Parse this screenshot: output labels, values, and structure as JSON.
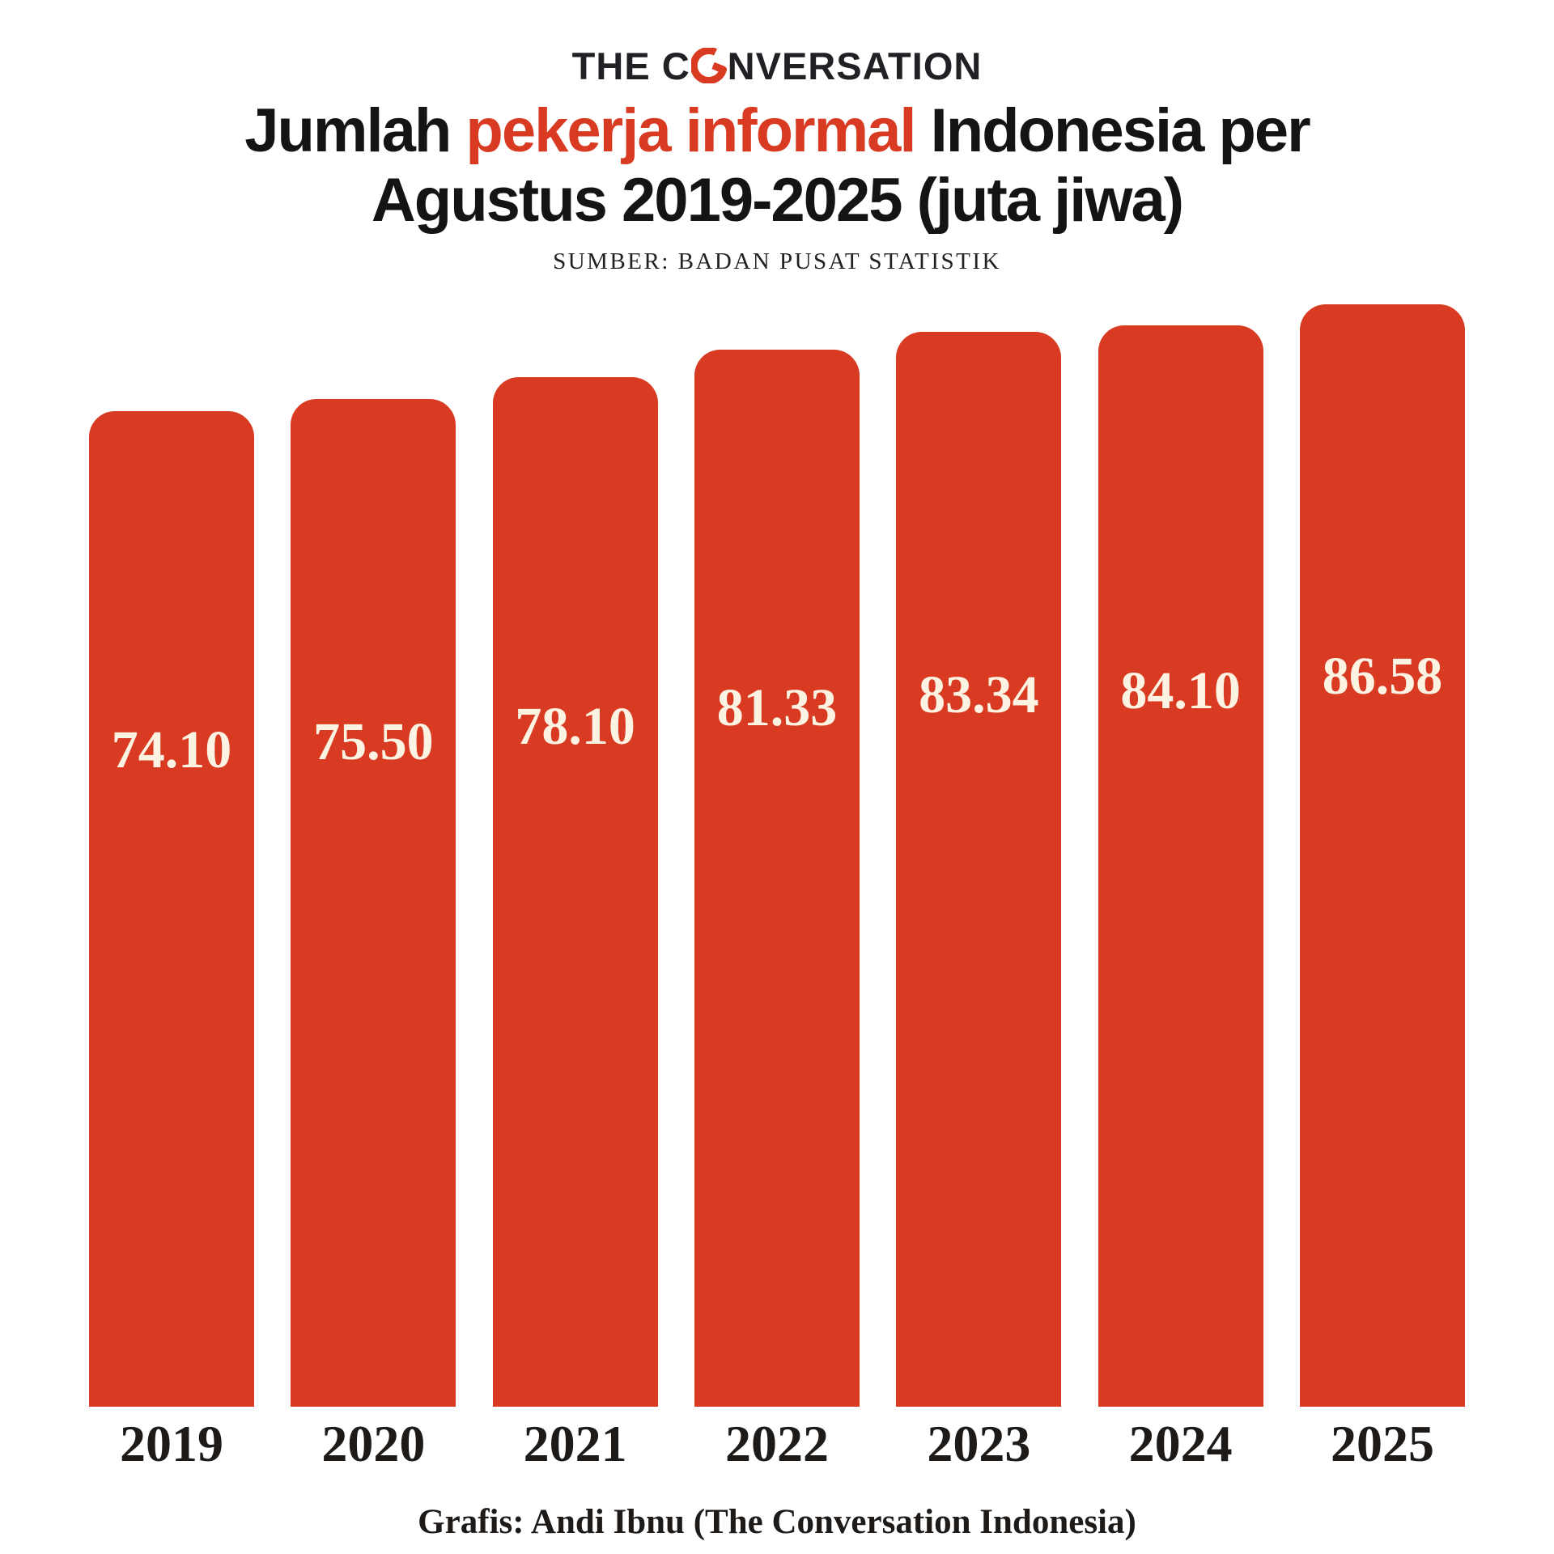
{
  "logo": {
    "pre": "THE C",
    "post": "NVERSATION"
  },
  "title": {
    "part1": "Jumlah ",
    "highlight": "pekerja informal",
    "part2": " Indonesia per",
    "line2": "Agustus 2019-2025 (juta jiwa)"
  },
  "source": "SUMBER: BADAN PUSAT STATISTIK",
  "credit": "Grafis: Andi Ibnu (The Conversation Indonesia)",
  "colors": {
    "bar": "#d93b22",
    "accent": "#d93b22",
    "title_text": "#161413",
    "value_label": "#fcf3e3",
    "year_label": "#1d1a18"
  },
  "chart_data": {
    "type": "bar",
    "title": "Jumlah pekerja informal Indonesia per Agustus 2019-2025 (juta jiwa)",
    "subtitle": "SUMBER: BADAN PUSAT STATISTIK",
    "categories": [
      "2019",
      "2020",
      "2021",
      "2022",
      "2023",
      "2024",
      "2025"
    ],
    "values": [
      74.1,
      75.5,
      78.1,
      81.33,
      83.34,
      84.1,
      86.58
    ],
    "value_labels": [
      "74.10",
      "75.50",
      "78.10",
      "81.33",
      "83.34",
      "84.10",
      "86.58"
    ],
    "unit": "juta jiwa",
    "xlabel": "",
    "ylabel": "",
    "grid": false,
    "legend": false,
    "bar_color": "#d93b22",
    "truncated_baseline": true
  }
}
